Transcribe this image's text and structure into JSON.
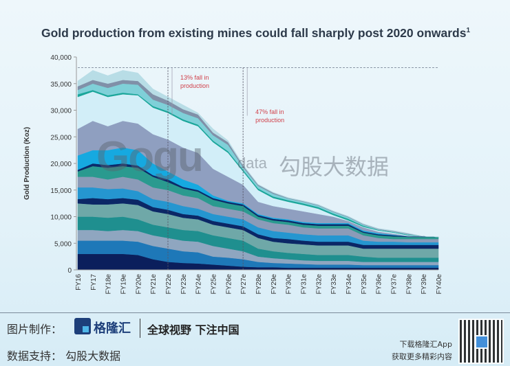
{
  "title": "Gold production from existing mines could fall sharply post 2020 onwards",
  "title_footnote": "1",
  "chart_data": {
    "type": "area",
    "stacked": true,
    "title": "Gold production from existing mines could fall sharply post 2020 onwards",
    "ylabel": "Gold Production (Koz)",
    "xlabel": "",
    "ylim": [
      0,
      40000
    ],
    "yticks": [
      "0",
      "5,000",
      "10,000",
      "15,000",
      "20,000",
      "25,000",
      "30,000",
      "35,000",
      "40,000"
    ],
    "ytick_values": [
      0,
      5000,
      10000,
      15000,
      20000,
      25000,
      30000,
      35000,
      40000
    ],
    "grid": false,
    "categories": [
      "FY16",
      "FY17",
      "FY18e",
      "FY19e",
      "FY20e",
      "FY21e",
      "FY22e",
      "FY23e",
      "FY24e",
      "FY25e",
      "FY26e",
      "FY27e",
      "FY28e",
      "FY29e",
      "FY30e",
      "FY31e",
      "FY32e",
      "FY33e",
      "FY34e",
      "FY35e",
      "FY36e",
      "FY37e",
      "FY38e",
      "FY39e",
      "FY40e"
    ],
    "reference_line_value": 38000,
    "markers": [
      {
        "category": "FY22e",
        "label": "13% fall in production"
      },
      {
        "category": "FY27e",
        "label": "47% fall in production"
      }
    ],
    "annotation_color": "#d0404a",
    "series": [
      {
        "color": "#0b1f5c",
        "values": [
          3000,
          3000,
          3000,
          3000,
          2800,
          2000,
          1500,
          1300,
          1200,
          1000,
          800,
          600,
          500,
          500,
          400,
          400,
          400,
          400,
          400,
          400,
          400,
          400,
          400,
          400,
          400
        ]
      },
      {
        "color": "#1e78b8",
        "values": [
          2500,
          2500,
          2500,
          2500,
          2500,
          2500,
          2500,
          2200,
          2100,
          1500,
          1500,
          1400,
          1000,
          800,
          800,
          700,
          600,
          600,
          600,
          500,
          500,
          500,
          500,
          500,
          500
        ]
      },
      {
        "color": "#8fa6c0",
        "values": [
          2000,
          2000,
          1800,
          2000,
          2000,
          2000,
          2000,
          2000,
          2000,
          2000,
          1700,
          1500,
          1000,
          900,
          800,
          700,
          700,
          700,
          700,
          600,
          600,
          600,
          600,
          600,
          600
        ]
      },
      {
        "color": "#1f8f8f",
        "values": [
          2500,
          2500,
          2500,
          2500,
          2200,
          2000,
          2000,
          2000,
          2000,
          2000,
          2000,
          2000,
          1500,
          1300,
          1200,
          1200,
          1100,
          1100,
          1100,
          1000,
          800,
          800,
          800,
          800,
          800
        ]
      },
      {
        "color": "#6fa8a8",
        "values": [
          2500,
          2300,
          2500,
          2500,
          2700,
          2500,
          2500,
          2300,
          2200,
          2000,
          2000,
          2000,
          2000,
          1800,
          1800,
          1800,
          1800,
          1800,
          1800,
          1500,
          1700,
          1700,
          1700,
          1700,
          1700
        ]
      },
      {
        "color": "#0b2766",
        "values": [
          800,
          1200,
          1000,
          1000,
          1000,
          800,
          800,
          700,
          700,
          700,
          700,
          700,
          700,
          700,
          800,
          700,
          700,
          700,
          700,
          700,
          700,
          700,
          700,
          700,
          700
        ]
      },
      {
        "color": "#2596d0",
        "values": [
          2200,
          2000,
          1900,
          1800,
          1600,
          1500,
          1500,
          1500,
          1300,
          1300,
          1300,
          1300,
          1300,
          1300,
          1200,
          1200,
          1200,
          1200,
          1200,
          800,
          600,
          600,
          500,
          500,
          500
        ]
      },
      {
        "color": "#8b9bb8",
        "values": [
          2000,
          2000,
          1800,
          2200,
          2200,
          2200,
          2200,
          2000,
          2000,
          1500,
          1500,
          1500,
          1500,
          1500,
          1500,
          1300,
          1300,
          1300,
          1300,
          1000,
          700,
          500,
          600,
          600,
          600
        ]
      },
      {
        "color": "#2a9a8f",
        "values": [
          1000,
          2000,
          2200,
          2000,
          2200,
          2000,
          1500,
          1300,
          1200,
          1200,
          1000,
          1000,
          500,
          500,
          500,
          500,
          500,
          500,
          500,
          500,
          500,
          500,
          400,
          400,
          400
        ]
      },
      {
        "color": "#0b2a6a",
        "values": [
          300,
          500,
          500,
          500,
          400,
          300,
          500,
          300,
          300,
          300,
          300,
          300,
          300,
          300,
          300,
          300,
          300,
          300,
          300,
          200,
          200,
          200,
          100,
          100,
          0
        ]
      },
      {
        "color": "#16a9e0",
        "values": [
          2700,
          2500,
          2800,
          3000,
          2900,
          2200,
          1500,
          1400,
          1000,
          500,
          200,
          200,
          200,
          200,
          200,
          200,
          200,
          200,
          200,
          200,
          200,
          100,
          0,
          0,
          0
        ]
      },
      {
        "color": "#8f9fc0",
        "values": [
          5000,
          5500,
          4500,
          5000,
          5000,
          5500,
          6000,
          6000,
          6000,
          5000,
          4500,
          3500,
          2300,
          2200,
          2000,
          2000,
          1700,
          1200,
          400,
          600,
          300,
          200,
          100,
          0,
          0
        ]
      },
      {
        "color": "#d2eef8",
        "values": [
          6000,
          5500,
          5500,
          5000,
          5300,
          5000,
          5000,
          5000,
          5000,
          5000,
          4500,
          2500,
          2200,
          1500,
          1300,
          1200,
          1000,
          300,
          100,
          100,
          200,
          200,
          100,
          0,
          0
        ]
      },
      {
        "color": "#1aa69a",
        "values": [
          500,
          300,
          300,
          300,
          200,
          300,
          300,
          300,
          300,
          300,
          300,
          300,
          300,
          300,
          300,
          300,
          300,
          300,
          300,
          200,
          100,
          100,
          100,
          0,
          0
        ]
      },
      {
        "color": "#7fd0d8",
        "values": [
          800,
          1200,
          1400,
          1700,
          1800,
          1200,
          1200,
          1200,
          1200,
          1000,
          1200,
          500,
          500,
          500,
          300,
          300,
          300,
          300,
          300,
          200,
          100,
          100,
          100,
          0,
          0
        ]
      },
      {
        "color": "#8090a8",
        "values": [
          700,
          700,
          800,
          700,
          700,
          1000,
          800,
          700,
          700,
          500,
          500,
          300,
          200,
          200,
          100,
          100,
          100,
          100,
          100,
          100,
          100,
          100,
          100,
          0,
          0
        ]
      },
      {
        "color": "#b8dde6",
        "values": [
          1000,
          1800,
          1500,
          1800,
          1500,
          1000,
          700,
          800,
          300,
          700,
          300,
          200,
          100,
          100,
          100,
          100,
          100,
          100,
          100,
          100,
          100,
          100,
          100,
          0,
          0
        ]
      }
    ]
  },
  "watermark": {
    "logo": "Gogu",
    "data": "data",
    "cn": "勾股大数据"
  },
  "footer": {
    "made_by": "图片制作：",
    "brand": "格隆汇",
    "slogan": "全球视野 下注中国",
    "data_support": "数据支持：  勾股大数据",
    "download_line1": "下载格隆汇App",
    "download_line2": "获取更多精彩内容"
  }
}
